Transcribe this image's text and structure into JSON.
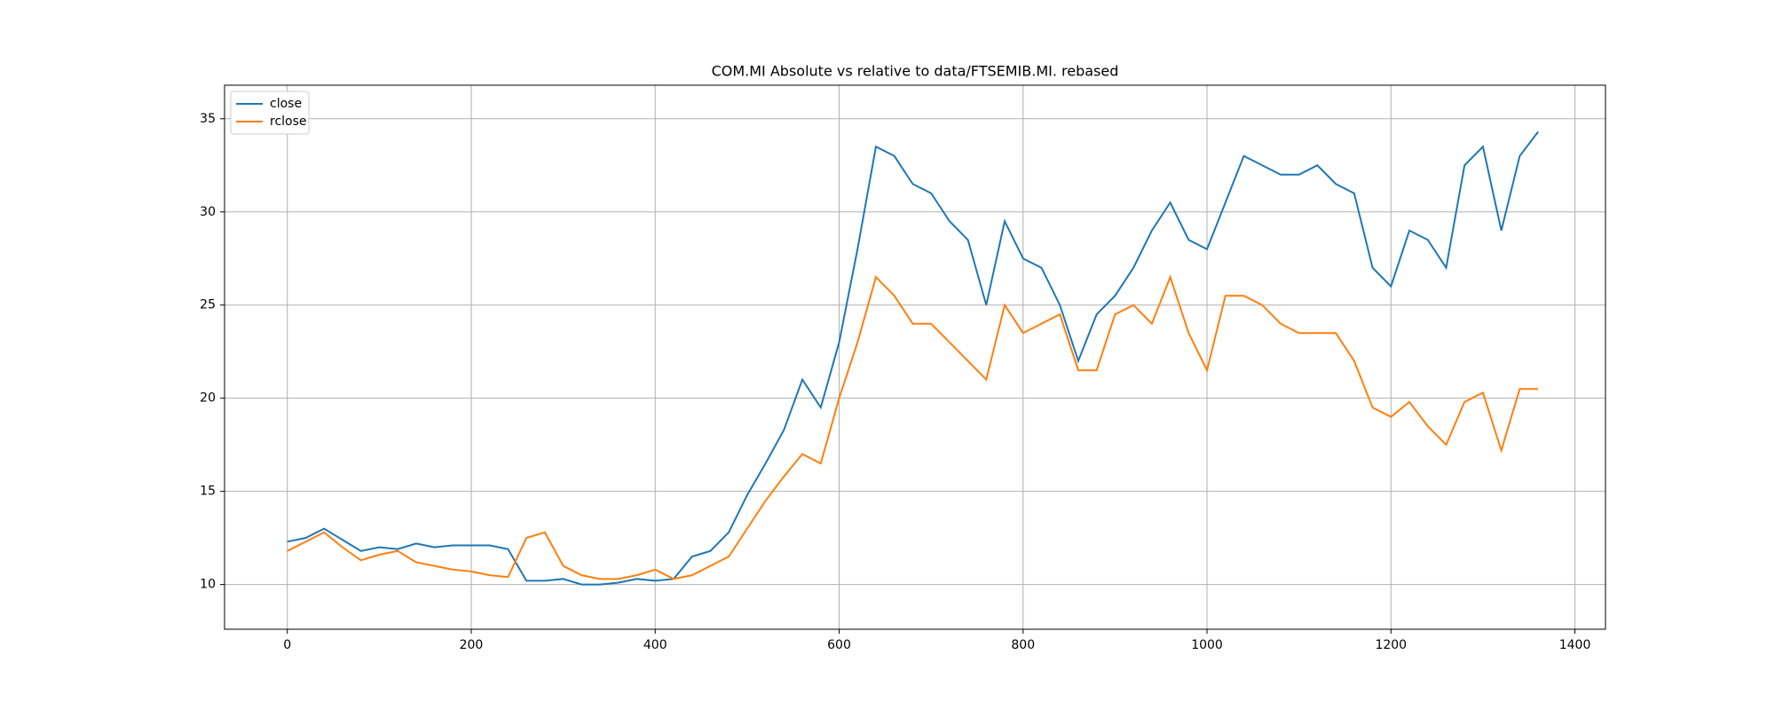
{
  "chart_data": {
    "type": "line",
    "title": "COM.MI Absolute vs relative to data/FTSEMIB.MI. rebased",
    "x": [
      0,
      20,
      40,
      60,
      80,
      100,
      120,
      140,
      160,
      180,
      200,
      220,
      240,
      260,
      280,
      300,
      320,
      340,
      360,
      380,
      400,
      420,
      440,
      460,
      480,
      500,
      520,
      540,
      560,
      580,
      600,
      620,
      640,
      660,
      680,
      700,
      720,
      740,
      760,
      780,
      800,
      820,
      840,
      860,
      880,
      900,
      920,
      940,
      960,
      980,
      1000,
      1020,
      1040,
      1060,
      1080,
      1100,
      1120,
      1140,
      1160,
      1180,
      1200,
      1220,
      1240,
      1260,
      1280,
      1300,
      1320,
      1340,
      1360
    ],
    "series": [
      {
        "name": "close",
        "color": "#1f77b4",
        "values": [
          12.3,
          12.5,
          13.0,
          12.4,
          11.8,
          12.0,
          11.9,
          12.2,
          12.0,
          12.1,
          12.1,
          12.1,
          11.9,
          10.2,
          10.2,
          10.3,
          10.0,
          10.0,
          10.1,
          10.3,
          10.2,
          10.3,
          11.5,
          11.8,
          12.8,
          14.8,
          16.5,
          18.3,
          21.0,
          19.5,
          23.0,
          28.0,
          33.5,
          33.0,
          31.5,
          31.0,
          29.5,
          28.5,
          25.0,
          29.5,
          27.5,
          27.0,
          25.0,
          22.0,
          24.5,
          25.5,
          27.0,
          29.0,
          30.5,
          28.5,
          28.0,
          30.5,
          33.0,
          32.5,
          32.0,
          32.0,
          32.5,
          31.5,
          31.0,
          27.0,
          26.0,
          29.0,
          28.5,
          27.0,
          32.5,
          33.5,
          29.0,
          33.0,
          34.3
        ]
      },
      {
        "name": "rclose",
        "color": "#ff7f0e",
        "values": [
          11.8,
          12.3,
          12.8,
          12.0,
          11.3,
          11.6,
          11.8,
          11.2,
          11.0,
          10.8,
          10.7,
          10.5,
          10.4,
          12.5,
          12.8,
          11.0,
          10.5,
          10.3,
          10.3,
          10.5,
          10.8,
          10.3,
          10.5,
          11.0,
          11.5,
          13.0,
          14.5,
          15.8,
          17.0,
          16.5,
          20.0,
          23.0,
          26.5,
          25.5,
          24.0,
          24.0,
          23.0,
          22.0,
          21.0,
          25.0,
          23.5,
          24.0,
          24.5,
          21.5,
          21.5,
          24.5,
          25.0,
          24.0,
          26.5,
          23.5,
          21.5,
          25.5,
          25.5,
          25.0,
          24.0,
          23.5,
          23.5,
          23.5,
          22.0,
          19.5,
          19.0,
          19.8,
          18.5,
          17.5,
          19.8,
          20.3,
          17.2,
          20.5,
          20.5
        ]
      }
    ],
    "xlim": [
      -68.25,
      1433.25
    ],
    "xticks": [
      0,
      200,
      400,
      600,
      800,
      1000,
      1200,
      1400
    ],
    "ylim": [
      7.6,
      36.8
    ],
    "yticks": [
      10,
      15,
      20,
      25,
      30,
      35
    ],
    "grid": true,
    "legend": "upper left"
  }
}
